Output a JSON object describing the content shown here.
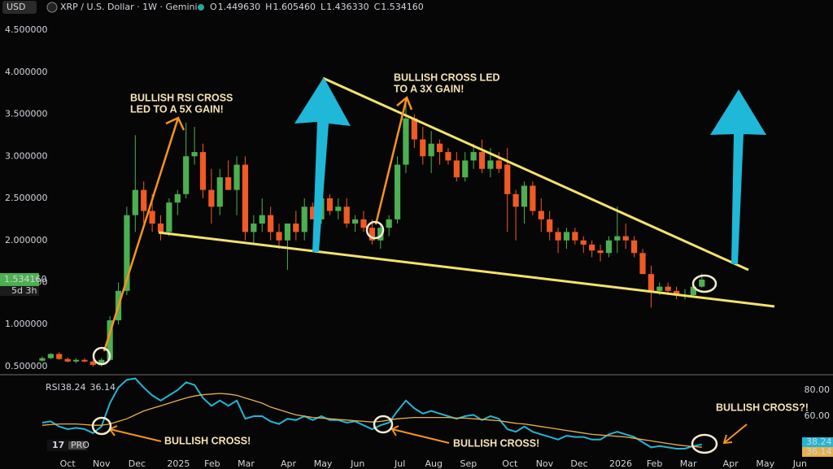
{
  "header": {
    "currency": "USD",
    "title": "XRP / U.S. Dollar · 1W · Gemini",
    "ohlc": [
      {
        "key": "O",
        "value": "1.449630"
      },
      {
        "key": "H",
        "value": "1.605460"
      },
      {
        "key": "L",
        "value": "1.436330"
      },
      {
        "key": "C",
        "value": "1.534160"
      }
    ],
    "badge": "PRO"
  },
  "annotations": {
    "rsi_gain": [
      "BULLISH RSI CROSS",
      "LED TO A 5X GAIN!"
    ],
    "cross_gain": [
      "BULLISH CROSS LED",
      "TO A 3X GAIN!"
    ],
    "cross_1": "BULLISH CROSS!",
    "cross_2": "BULLISH CROSS!",
    "cross_3": "BULLISH CROSS?!"
  },
  "chart_data": [
    {
      "type": "candlestick",
      "colors": {
        "up": "#4caf50",
        "down": "#f05a24"
      },
      "ylim": [
        0.413,
        4.645
      ],
      "xlim": [
        -5,
        91.2
      ],
      "yticks": [
        {
          "value": 0.5,
          "label": "0.500000"
        },
        {
          "value": 1,
          "label": "1.000000"
        },
        {
          "value": 1.5,
          "label": "1.500000"
        },
        {
          "value": 2,
          "label": "2.000000"
        },
        {
          "value": 2.5,
          "label": "2.500000"
        },
        {
          "value": 3,
          "label": "3.000000"
        },
        {
          "value": 3.5,
          "label": "3.500000"
        },
        {
          "value": 4,
          "label": "4.000000"
        },
        {
          "value": 4.5,
          "label": "4.500000"
        }
      ],
      "xticks": [
        {
          "value": 3.0,
          "label": "Oct"
        },
        {
          "value": 7.0,
          "label": "Nov"
        },
        {
          "value": 11.2,
          "label": "Dec"
        },
        {
          "value": 16.1,
          "label": "2025"
        },
        {
          "value": 20.1,
          "label": "Feb"
        },
        {
          "value": 24.1,
          "label": "Mar"
        },
        {
          "value": 29.1,
          "label": "Apr"
        },
        {
          "value": 33.2,
          "label": "May"
        },
        {
          "value": 37.3,
          "label": "Jun"
        },
        {
          "value": 42.3,
          "label": "Jul"
        },
        {
          "value": 46.3,
          "label": "Aug"
        },
        {
          "value": 50.4,
          "label": "Sep"
        },
        {
          "value": 55.3,
          "label": "Oct"
        },
        {
          "value": 59.4,
          "label": "Nov"
        },
        {
          "value": 63.5,
          "label": "Dec"
        },
        {
          "value": 68.4,
          "label": "2026"
        },
        {
          "value": 72.4,
          "label": "Feb"
        },
        {
          "value": 76.4,
          "label": "Mar"
        },
        {
          "value": 81.4,
          "label": "Apr"
        },
        {
          "value": 85.5,
          "label": "May"
        },
        {
          "value": 89.6,
          "label": "Jun"
        }
      ],
      "last_price": {
        "value": 1.53416,
        "label": "1.534160"
      },
      "countdown": "5d 3h",
      "open": [
        0.57,
        0.6,
        0.65,
        0.59,
        0.56,
        0.58,
        0.56,
        0.52,
        0.58,
        1.05,
        1.4,
        2.3,
        2.6,
        2.35,
        2.2,
        2.1,
        2.45,
        2.55,
        3.0,
        3.05,
        2.6,
        2.4,
        2.75,
        2.6,
        2.9,
        2.1,
        2.2,
        2.3,
        2.1,
        2.0,
        2.2,
        2.1,
        2.4,
        2.25,
        2.5,
        2.35,
        2.4,
        2.2,
        2.25,
        2.15,
        2.0,
        2.15,
        2.25,
        2.9,
        3.45,
        3.2,
        3.0,
        3.15,
        3.05,
        2.95,
        2.75,
        2.95,
        3.05,
        2.85,
        2.95,
        2.9,
        2.55,
        2.4,
        2.65,
        2.35,
        2.25,
        2.1,
        2.0,
        2.1,
        2.0,
        1.95,
        1.88,
        1.85,
        2.0,
        2.05,
        2.0,
        1.85,
        1.6,
        1.4,
        1.45,
        1.4,
        1.35,
        1.35,
        1.44963
      ],
      "high": [
        0.62,
        0.66,
        0.67,
        0.61,
        0.6,
        0.6,
        0.58,
        0.6,
        1.1,
        1.5,
        2.4,
        3.25,
        2.7,
        2.55,
        2.3,
        2.5,
        2.6,
        3.4,
        3.35,
        3.15,
        2.85,
        2.85,
        2.95,
        3.0,
        3.0,
        2.3,
        2.5,
        2.4,
        2.2,
        2.2,
        2.35,
        2.5,
        2.45,
        2.6,
        2.55,
        2.5,
        2.5,
        2.3,
        2.35,
        2.25,
        2.2,
        2.3,
        3.0,
        3.66,
        3.5,
        3.35,
        3.3,
        3.2,
        3.1,
        3.05,
        3.05,
        3.15,
        3.2,
        3.1,
        3.05,
        3.1,
        2.6,
        2.7,
        2.7,
        2.5,
        2.35,
        2.15,
        2.15,
        2.15,
        2.05,
        2.0,
        1.95,
        2.05,
        2.4,
        2.2,
        2.05,
        1.9,
        1.7,
        1.5,
        1.5,
        1.45,
        1.42,
        1.5,
        1.60546
      ],
      "low": [
        0.56,
        0.59,
        0.58,
        0.55,
        0.54,
        0.55,
        0.5,
        0.5,
        0.57,
        1.0,
        1.35,
        2.1,
        2.2,
        2.1,
        2.0,
        2.05,
        2.3,
        2.5,
        2.9,
        2.5,
        2.2,
        2.3,
        2.6,
        2.3,
        2.0,
        1.95,
        2.1,
        2.0,
        1.9,
        1.65,
        2.0,
        2.0,
        2.25,
        2.2,
        2.3,
        2.25,
        2.15,
        2.1,
        2.1,
        1.95,
        1.9,
        2.05,
        2.2,
        2.8,
        3.1,
        2.9,
        2.8,
        2.9,
        2.9,
        2.7,
        2.7,
        2.85,
        2.8,
        2.75,
        2.8,
        2.1,
        2.0,
        2.2,
        2.3,
        2.1,
        2.0,
        1.85,
        1.9,
        1.95,
        1.85,
        1.8,
        1.75,
        1.8,
        1.85,
        1.9,
        1.8,
        1.6,
        1.2,
        1.35,
        1.35,
        1.3,
        1.3,
        1.33,
        1.43633
      ],
      "close": [
        0.6,
        0.65,
        0.59,
        0.56,
        0.58,
        0.56,
        0.52,
        0.58,
        1.05,
        1.4,
        2.3,
        2.6,
        2.35,
        2.2,
        2.1,
        2.45,
        2.55,
        3.0,
        3.05,
        2.6,
        2.4,
        2.75,
        2.6,
        2.9,
        2.1,
        2.2,
        2.3,
        2.1,
        2.0,
        2.2,
        2.1,
        2.4,
        2.25,
        2.5,
        2.35,
        2.4,
        2.2,
        2.25,
        2.15,
        2.0,
        2.15,
        2.25,
        2.9,
        3.45,
        3.2,
        3.0,
        3.15,
        3.05,
        2.95,
        2.75,
        2.95,
        3.05,
        2.85,
        2.95,
        2.85,
        2.55,
        2.4,
        2.65,
        2.35,
        2.25,
        2.1,
        2.0,
        2.1,
        2.0,
        1.95,
        1.88,
        1.85,
        2.0,
        2.05,
        2.0,
        1.85,
        1.6,
        1.4,
        1.45,
        1.4,
        1.35,
        1.35,
        1.45,
        1.53416
      ]
    },
    {
      "type": "line",
      "title": "RSI",
      "ylim": [
        28.75,
        90.6
      ],
      "xlim": [
        -5,
        91.2
      ],
      "yticks": [
        {
          "value": 60,
          "label": "60.00"
        },
        {
          "value": 80,
          "label": "80.00"
        }
      ],
      "series": [
        {
          "color": "#22b5d4",
          "last": 38.24,
          "values": [
            55,
            56,
            52,
            50,
            51,
            50,
            47,
            52,
            70,
            82,
            88,
            89,
            82,
            76,
            72,
            76,
            80,
            86,
            84,
            74,
            68,
            72,
            68,
            72,
            58,
            60,
            60,
            56,
            54,
            58,
            57,
            60,
            57,
            60,
            57,
            57,
            55,
            56,
            53,
            50,
            53,
            55,
            64,
            72,
            66,
            62,
            64,
            62,
            60,
            58,
            60,
            61,
            57,
            60,
            58,
            50,
            48,
            52,
            48,
            46,
            44,
            42,
            45,
            44,
            44,
            42,
            42,
            46,
            48,
            46,
            44,
            40,
            36,
            37,
            36,
            35,
            35,
            37,
            38.24
          ]
        },
        {
          "color": "#e8b04a",
          "last": 36.14,
          "values": [
            53,
            53.5,
            54,
            54,
            54,
            53.5,
            53,
            53,
            54,
            56,
            58,
            61,
            64,
            66,
            68,
            70,
            72,
            74,
            75.5,
            76.5,
            77,
            77.5,
            77,
            76,
            74,
            72,
            70,
            67,
            65,
            63,
            61,
            60,
            59,
            58.5,
            58,
            57.5,
            57,
            56.5,
            56,
            55.5,
            56,
            57,
            58,
            58.5,
            59,
            59,
            59,
            59,
            59,
            58.5,
            58.5,
            58,
            57.5,
            57,
            56.5,
            55.5,
            54.5,
            54,
            53,
            52,
            51,
            50,
            49,
            48,
            47,
            46,
            45.5,
            45,
            44.5,
            44,
            43,
            42,
            41,
            40,
            39,
            38,
            37.2,
            36.6,
            36.14
          ]
        }
      ]
    }
  ]
}
